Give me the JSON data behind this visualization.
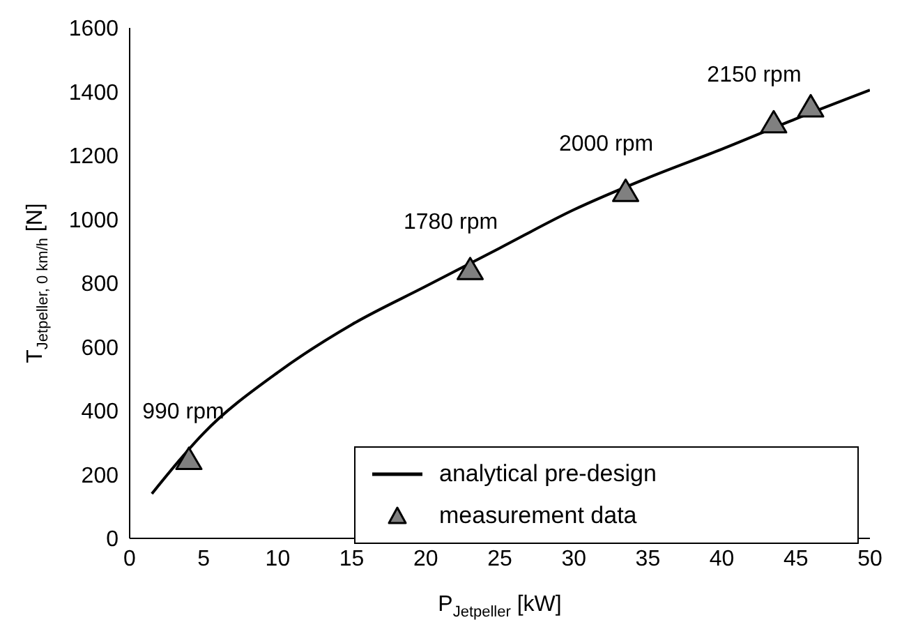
{
  "chart_data": {
    "type": "line",
    "xlabel": "P$_{Jetpeller}$ [kW]",
    "ylabel": "T$_{Jetpeller, 0 km/h}$ [N]",
    "xlim": [
      0,
      50
    ],
    "xticks": [
      0,
      5,
      10,
      15,
      20,
      25,
      30,
      35,
      40,
      45,
      50
    ],
    "ylim": [
      0,
      1600
    ],
    "yticks": [
      0,
      200,
      400,
      600,
      800,
      1000,
      1200,
      1400,
      1600
    ],
    "grid": false,
    "legend": "bottom right",
    "series": [
      {
        "name": "analytical pre-design",
        "color": "#000000",
        "marker": "none",
        "line_style": "solid",
        "x": [
          1.5,
          5,
          10,
          15,
          20,
          25,
          30,
          35,
          40,
          45,
          50
        ],
        "values": [
          140,
          330,
          520,
          670,
          790,
          910,
          1030,
          1130,
          1220,
          1315,
          1405
        ]
      },
      {
        "name": "measurement data",
        "type": "scatter",
        "color": "#808080",
        "marker": "triangle",
        "x": [
          4,
          23,
          33.5,
          43.5,
          46
        ],
        "values": [
          245,
          840,
          1085,
          1300,
          1350
        ]
      }
    ],
    "annotations": [
      {
        "text": "990 rpm",
        "x": 4,
        "y": 245
      },
      {
        "text": "1780 rpm",
        "x": 23,
        "y": 840
      },
      {
        "text": "2000 rpm",
        "x": 33.5,
        "y": 1085
      },
      {
        "text": "2150 rpm",
        "x": 43.5,
        "y": 1300
      }
    ]
  }
}
